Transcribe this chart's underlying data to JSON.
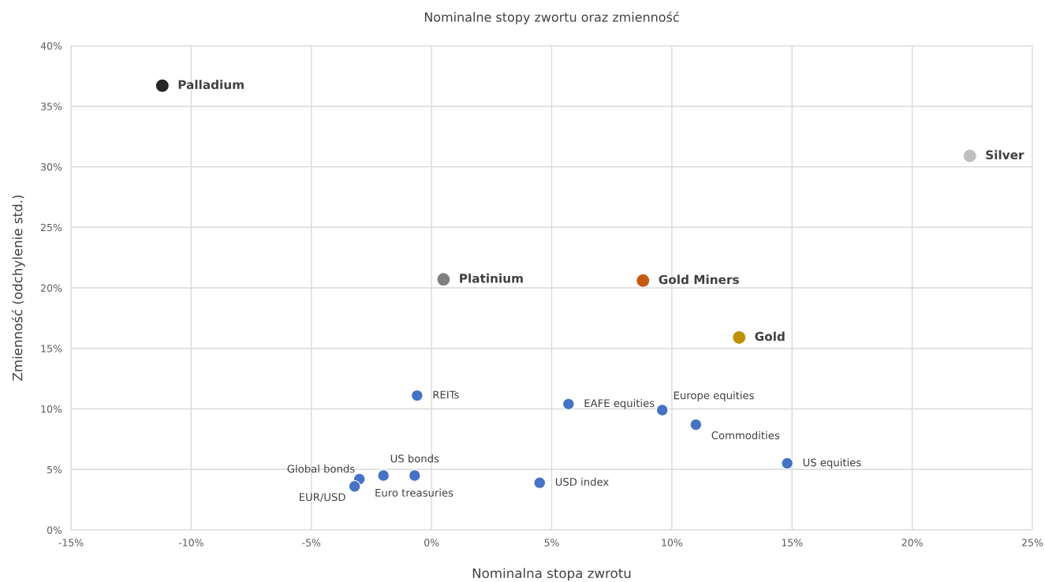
{
  "chart_data": {
    "type": "scatter",
    "title": "Nominalne stopy zwortu oraz zmienność",
    "xlabel": "Nominalna stopa zwrotu",
    "ylabel": "Zmienność (odchylenie std.)",
    "series": [
      {
        "x": [
          -11.2,
          22.4,
          0.5,
          8.8,
          12.8
        ],
        "values": [
          36.7,
          30.9,
          20.7,
          20.6,
          15.9
        ],
        "colors": [
          "#262626",
          "#bfbfbf",
          "#7f7f7f",
          "#c55a11",
          "#bf9000"
        ]
      },
      {
        "x": [
          -0.6,
          5.7,
          9.6,
          11.0,
          14.8,
          4.5,
          -0.7,
          -2.0,
          -3.0,
          -3.2
        ],
        "values": [
          11.1,
          10.4,
          9.9,
          8.7,
          5.5,
          3.9,
          4.5,
          4.5,
          4.2,
          3.6
        ],
        "color": "#4472c4"
      }
    ],
    "annotations": [
      {
        "text": "Palladium",
        "x": -11.2,
        "y": 36.7
      },
      {
        "text": "Silver",
        "x": 22.4,
        "y": 30.9
      },
      {
        "text": "Platinium",
        "x": 0.5,
        "y": 20.7
      },
      {
        "text": "Gold Miners",
        "x": 8.8,
        "y": 20.6
      },
      {
        "text": "Gold",
        "x": 12.8,
        "y": 15.9
      },
      {
        "text": "REITs",
        "x": -0.6,
        "y": 11.1
      },
      {
        "text": "EAFE equities",
        "x": 5.7,
        "y": 10.4
      },
      {
        "text": "Europe equities",
        "x": 9.6,
        "y": 9.9
      },
      {
        "text": "Commodities",
        "x": 11.0,
        "y": 8.7
      },
      {
        "text": "US equities",
        "x": 14.8,
        "y": 5.5
      },
      {
        "text": "USD index",
        "x": 4.5,
        "y": 3.9
      },
      {
        "text": "US bonds",
        "x": -0.7,
        "y": 4.5
      },
      {
        "text": "Euro treasuries",
        "x": -2.0,
        "y": 4.5
      },
      {
        "text": "Global bonds",
        "x": -3.0,
        "y": 4.2
      },
      {
        "text": "EUR/USD",
        "x": -3.2,
        "y": 3.6
      }
    ],
    "xlim": [
      -15,
      25
    ],
    "ylim": [
      0,
      40
    ],
    "xticks": [
      {
        "value": -15,
        "label": "-15%"
      },
      {
        "value": -10,
        "label": "-10%"
      },
      {
        "value": -5,
        "label": "-5%"
      },
      {
        "value": 0,
        "label": "0%"
      },
      {
        "value": 5,
        "label": "5%"
      },
      {
        "value": 10,
        "label": "10%"
      },
      {
        "value": 15,
        "label": "15%"
      },
      {
        "value": 20,
        "label": "20%"
      },
      {
        "value": 25,
        "label": "25%"
      }
    ],
    "yticks": [
      {
        "value": 0,
        "label": "0%"
      },
      {
        "value": 5,
        "label": "5%"
      },
      {
        "value": 10,
        "label": "10%"
      },
      {
        "value": 15,
        "label": "15%"
      },
      {
        "value": 20,
        "label": "20%"
      },
      {
        "value": 25,
        "label": "25%"
      },
      {
        "value": 30,
        "label": "30%"
      },
      {
        "value": 35,
        "label": "35%"
      },
      {
        "value": 40,
        "label": "40%"
      }
    ],
    "grid": true,
    "marker": "circle"
  }
}
